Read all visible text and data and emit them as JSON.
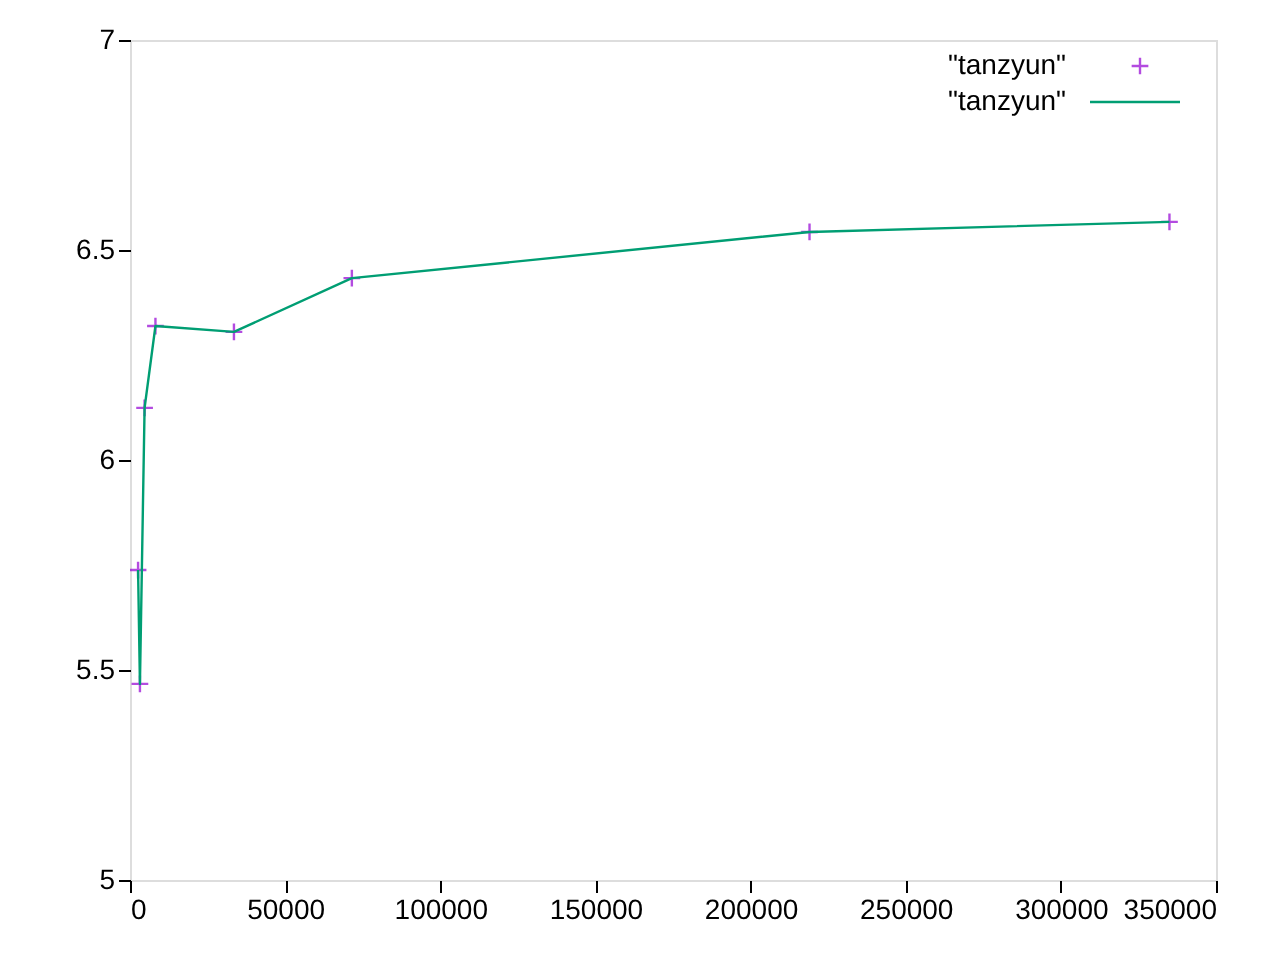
{
  "chart_data": {
    "type": "line",
    "xlim": [
      0,
      350000
    ],
    "xticks": [
      0,
      50000,
      100000,
      150000,
      200000,
      250000,
      300000,
      350000
    ],
    "ylim": [
      5,
      7
    ],
    "yticks": [
      5,
      5.5,
      6,
      6.5,
      7
    ],
    "grid": false,
    "legend": "top right",
    "series": [
      {
        "name": "\"tanzyun\"",
        "type": "scatter",
        "marker": "cross",
        "color": "#9400d3",
        "x": [
          2600,
          3200,
          4700,
          8200,
          33500,
          71500,
          219000,
          335000
        ],
        "values": [
          5.738,
          5.467,
          6.124,
          6.319,
          6.305,
          6.433,
          6.543,
          6.567
        ]
      },
      {
        "name": "\"tanzyun\"",
        "marker": "none",
        "color": "#009e73",
        "x": [
          2600,
          3200,
          4700,
          8200,
          33500,
          71500,
          219000,
          335000
        ],
        "values": [
          5.738,
          5.467,
          6.124,
          6.319,
          6.305,
          6.433,
          6.543,
          6.567
        ]
      }
    ]
  }
}
